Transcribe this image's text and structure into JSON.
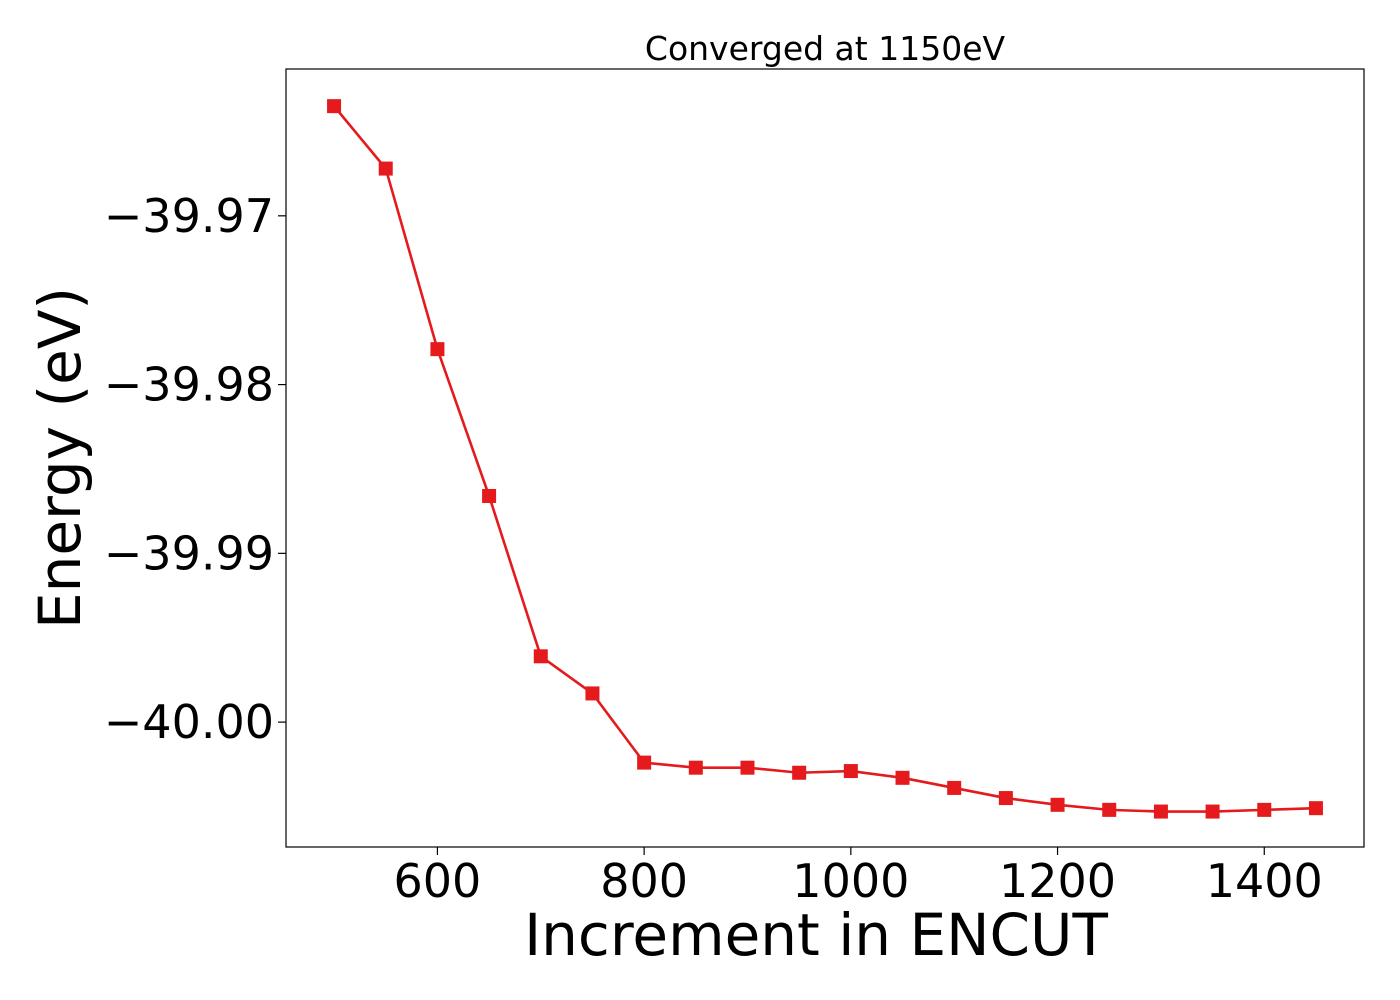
{
  "chart_data": {
    "type": "line",
    "title": "Converged at 1150eV",
    "xlabel": "Increment in ENCUT",
    "ylabel": "Energy (eV)",
    "xlim": [
      453.5,
      1496.5
    ],
    "ylim": [
      -40.0074,
      -39.9613
    ],
    "xticks": [
      600,
      800,
      1000,
      1200,
      1400
    ],
    "xtick_labels": [
      "600",
      "800",
      "1000",
      "1200",
      "1400"
    ],
    "yticks": [
      -39.97,
      -39.98,
      -39.99,
      -40.0
    ],
    "ytick_labels": [
      "−39.97",
      "−39.98",
      "−39.99",
      "−40.00"
    ],
    "grid": false,
    "legend": "none",
    "series": [
      {
        "color": "#e41a1c",
        "marker": "square",
        "x": [
          500,
          550,
          600,
          650,
          700,
          750,
          800,
          850,
          900,
          950,
          1000,
          1050,
          1100,
          1150,
          1200,
          1250,
          1300,
          1350,
          1400,
          1450
        ],
        "y": [
          -39.9635,
          -39.9672,
          -39.9779,
          -39.9866,
          -39.9961,
          -39.9983,
          -40.0024,
          -40.0027,
          -40.0027,
          -40.003,
          -40.0029,
          -40.0033,
          -40.0039,
          -40.0045,
          -40.0049,
          -40.0052,
          -40.0053,
          -40.0053,
          -40.0052,
          -40.0051
        ]
      }
    ]
  }
}
